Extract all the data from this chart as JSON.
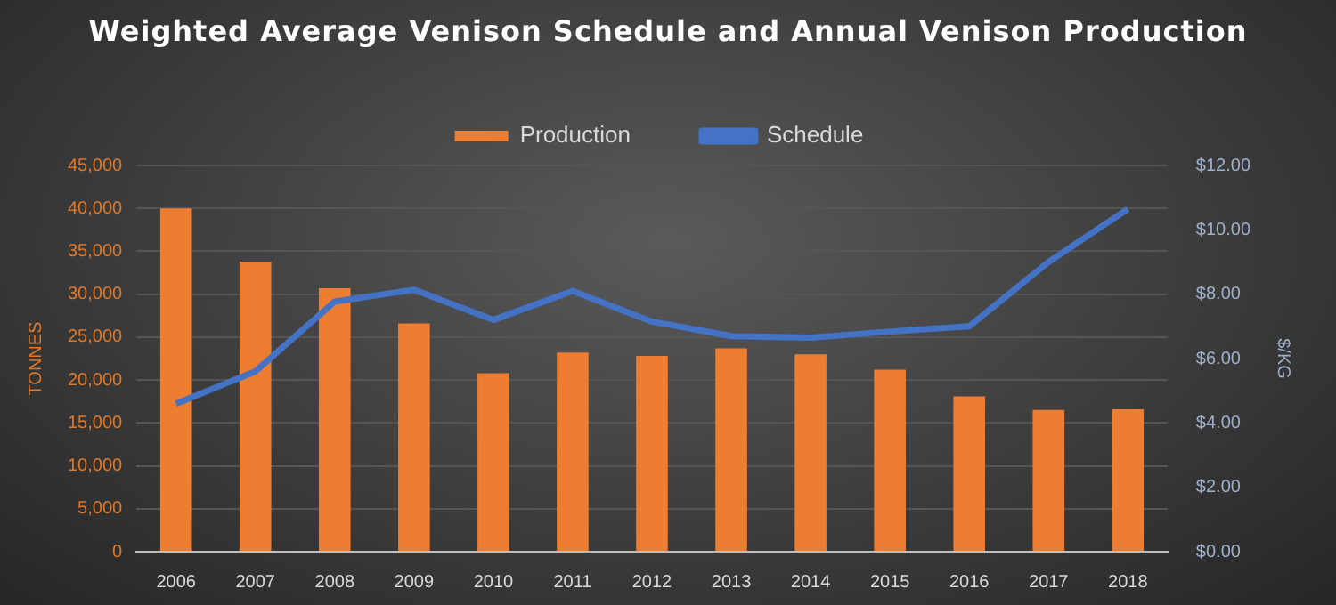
{
  "chart_data": {
    "type": "bar",
    "title": "Weighted Average Venison Schedule and Annual Venison Production",
    "ylabel": "TONNES",
    "y2label": "$/KG",
    "categories": [
      "2006",
      "2007",
      "2008",
      "2009",
      "2010",
      "2011",
      "2012",
      "2013",
      "2014",
      "2015",
      "2016",
      "2017",
      "2018"
    ],
    "series": [
      {
        "name": "Production",
        "color": "#ed7d31",
        "values": [
          40000,
          33800,
          30700,
          26600,
          20800,
          23200,
          22800,
          23700,
          23000,
          21200,
          18100,
          16500,
          16600
        ]
      },
      {
        "name": "Schedule",
        "type": "line",
        "axis": "y2",
        "color": "#4472c4",
        "values": [
          4.6,
          5.6,
          7.77,
          8.14,
          7.2,
          8.1,
          7.15,
          6.7,
          6.65,
          6.84,
          7.0,
          9.0,
          10.65
        ]
      }
    ],
    "ylim": [
      0,
      45000
    ],
    "yticks": [
      {
        "value": 0,
        "label": "0"
      },
      {
        "value": 5000,
        "label": "5,000"
      },
      {
        "value": 10000,
        "label": "10,000"
      },
      {
        "value": 15000,
        "label": "15,000"
      },
      {
        "value": 20000,
        "label": "20,000"
      },
      {
        "value": 25000,
        "label": "25,000"
      },
      {
        "value": 30000,
        "label": "30,000"
      },
      {
        "value": 35000,
        "label": "35,000"
      },
      {
        "value": 40000,
        "label": "40,000"
      },
      {
        "value": 45000,
        "label": "45,000"
      }
    ],
    "y2lim": [
      0,
      12
    ],
    "y2ticks": [
      {
        "value": 0,
        "label": "$0.00"
      },
      {
        "value": 2,
        "label": "$2.00"
      },
      {
        "value": 4,
        "label": "$4.00"
      },
      {
        "value": 6,
        "label": "$6.00"
      },
      {
        "value": 8,
        "label": "$8.00"
      },
      {
        "value": 10,
        "label": "$10.00"
      },
      {
        "value": 12,
        "label": "$12.00"
      }
    ],
    "grid": "y",
    "legend": "top",
    "marker": "none"
  }
}
